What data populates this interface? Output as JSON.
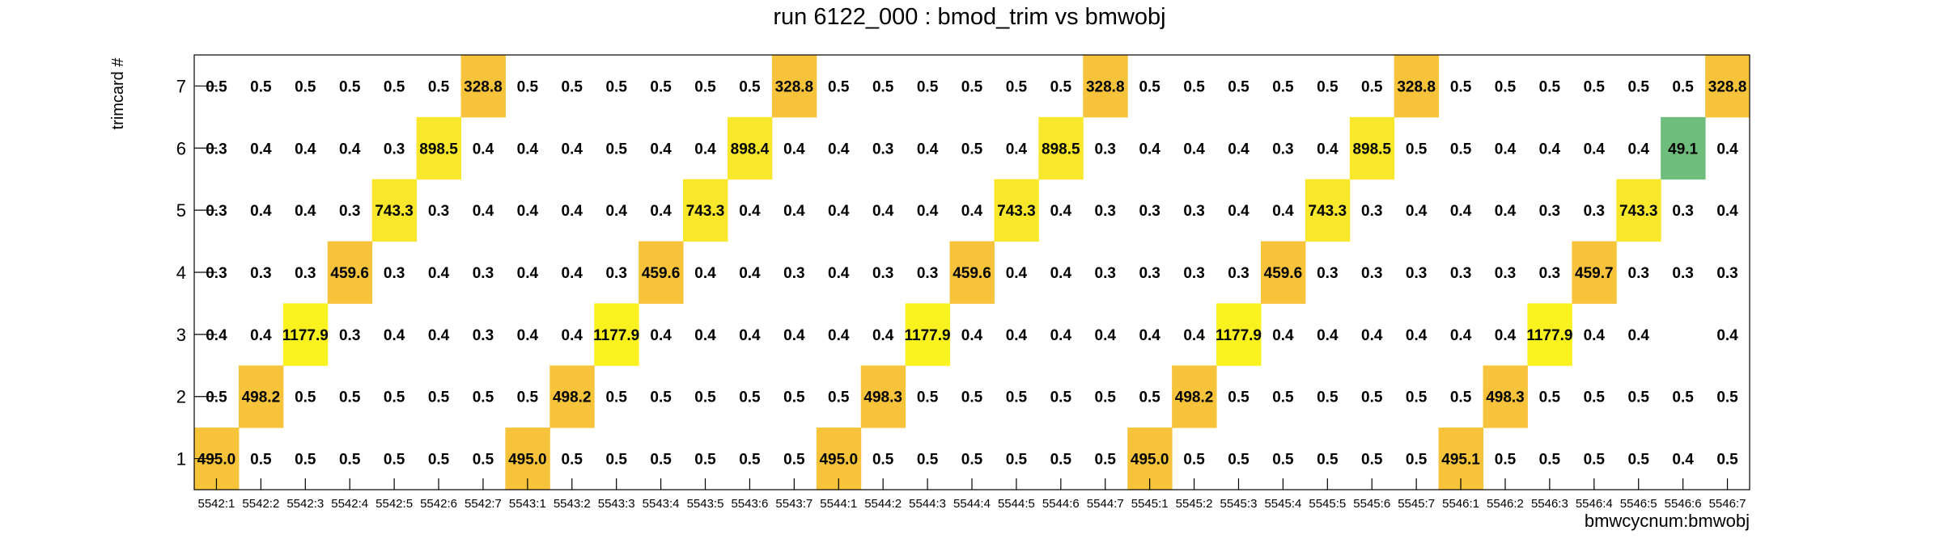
{
  "chart_data": {
    "type": "heatmap",
    "title": "run 6122_000 : bmod_trim vs bmwobj",
    "xlabel": "bmwcycnum:bmwobj",
    "ylabel": "trimcard #",
    "x_categories": [
      "5542:1",
      "5542:2",
      "5542:3",
      "5542:4",
      "5542:5",
      "5542:6",
      "5542:7",
      "5543:1",
      "5543:2",
      "5543:3",
      "5543:4",
      "5543:5",
      "5543:6",
      "5543:7",
      "5544:1",
      "5544:2",
      "5544:3",
      "5544:4",
      "5544:5",
      "5544:6",
      "5544:7",
      "5545:1",
      "5545:2",
      "5545:3",
      "5545:4",
      "5545:5",
      "5545:6",
      "5545:7",
      "5546:1",
      "5546:2",
      "5546:3",
      "5546:4",
      "5546:5",
      "5546:6",
      "5546:7"
    ],
    "y_categories": [
      "1",
      "2",
      "3",
      "4",
      "5",
      "6",
      "7"
    ],
    "rows": [
      {
        "y": "7",
        "values": [
          0.5,
          0.5,
          0.5,
          0.5,
          0.5,
          0.5,
          328.8,
          0.5,
          0.5,
          0.5,
          0.5,
          0.5,
          0.5,
          328.8,
          0.5,
          0.5,
          0.5,
          0.5,
          0.5,
          0.5,
          328.8,
          0.5,
          0.5,
          0.5,
          0.5,
          0.5,
          0.5,
          328.8,
          0.5,
          0.5,
          0.5,
          0.5,
          0.5,
          0.5,
          328.8
        ]
      },
      {
        "y": "6",
        "values": [
          0.3,
          0.4,
          0.4,
          0.4,
          0.3,
          898.5,
          0.4,
          0.4,
          0.4,
          0.5,
          0.4,
          0.4,
          898.4,
          0.4,
          0.4,
          0.3,
          0.4,
          0.5,
          0.4,
          898.5,
          0.3,
          0.4,
          0.4,
          0.4,
          0.3,
          0.4,
          898.5,
          0.5,
          0.5,
          0.4,
          0.4,
          0.4,
          0.4,
          49.1,
          0.4
        ]
      },
      {
        "y": "5",
        "values": [
          0.3,
          0.4,
          0.4,
          0.3,
          743.3,
          0.3,
          0.4,
          0.4,
          0.4,
          0.4,
          0.4,
          743.3,
          0.4,
          0.4,
          0.4,
          0.4,
          0.4,
          0.4,
          743.3,
          0.4,
          0.3,
          0.3,
          0.3,
          0.4,
          0.4,
          743.3,
          0.3,
          0.4,
          0.4,
          0.4,
          0.3,
          0.3,
          743.3,
          0.3,
          0.4
        ]
      },
      {
        "y": "4",
        "values": [
          0.3,
          0.3,
          0.3,
          459.6,
          0.3,
          0.4,
          0.3,
          0.4,
          0.4,
          0.3,
          459.6,
          0.4,
          0.4,
          0.3,
          0.4,
          0.3,
          0.3,
          459.6,
          0.4,
          0.4,
          0.3,
          0.3,
          0.3,
          0.3,
          459.6,
          0.3,
          0.3,
          0.3,
          0.3,
          0.3,
          0.3,
          459.7,
          0.3,
          0.3,
          0.3
        ]
      },
      {
        "y": "3",
        "values": [
          0.4,
          0.4,
          1177.9,
          0.3,
          0.4,
          0.4,
          0.3,
          0.4,
          0.4,
          1177.9,
          0.4,
          0.4,
          0.4,
          0.4,
          0.4,
          0.4,
          1177.9,
          0.4,
          0.4,
          0.4,
          0.4,
          0.4,
          0.4,
          1177.9,
          0.4,
          0.4,
          0.4,
          0.4,
          0.4,
          0.4,
          1177.9,
          0.4,
          0.4,
          null,
          0.4
        ]
      },
      {
        "y": "2",
        "values": [
          0.5,
          498.2,
          0.5,
          0.5,
          0.5,
          0.5,
          0.5,
          0.5,
          498.2,
          0.5,
          0.5,
          0.5,
          0.5,
          0.5,
          0.5,
          498.3,
          0.5,
          0.5,
          0.5,
          0.5,
          0.5,
          0.5,
          498.2,
          0.5,
          0.5,
          0.5,
          0.5,
          0.5,
          0.5,
          498.3,
          0.5,
          0.5,
          0.5,
          0.5,
          0.5
        ]
      },
      {
        "y": "1",
        "values": [
          495.0,
          0.5,
          0.5,
          0.5,
          0.5,
          0.5,
          0.5,
          495.0,
          0.5,
          0.5,
          0.5,
          0.5,
          0.5,
          0.5,
          495.0,
          0.5,
          0.5,
          0.5,
          0.5,
          0.5,
          0.5,
          495.0,
          0.5,
          0.5,
          0.5,
          0.5,
          0.5,
          0.5,
          495.1,
          0.5,
          0.5,
          0.5,
          0.5,
          0.4,
          0.5
        ]
      }
    ],
    "grid": false,
    "colors": {
      "low": "#f6c33b",
      "mid": "#f8e72a",
      "high": "#f9f21f",
      "special": "#6ebd7c",
      "frame": "#000000",
      "text": "#000000"
    }
  }
}
